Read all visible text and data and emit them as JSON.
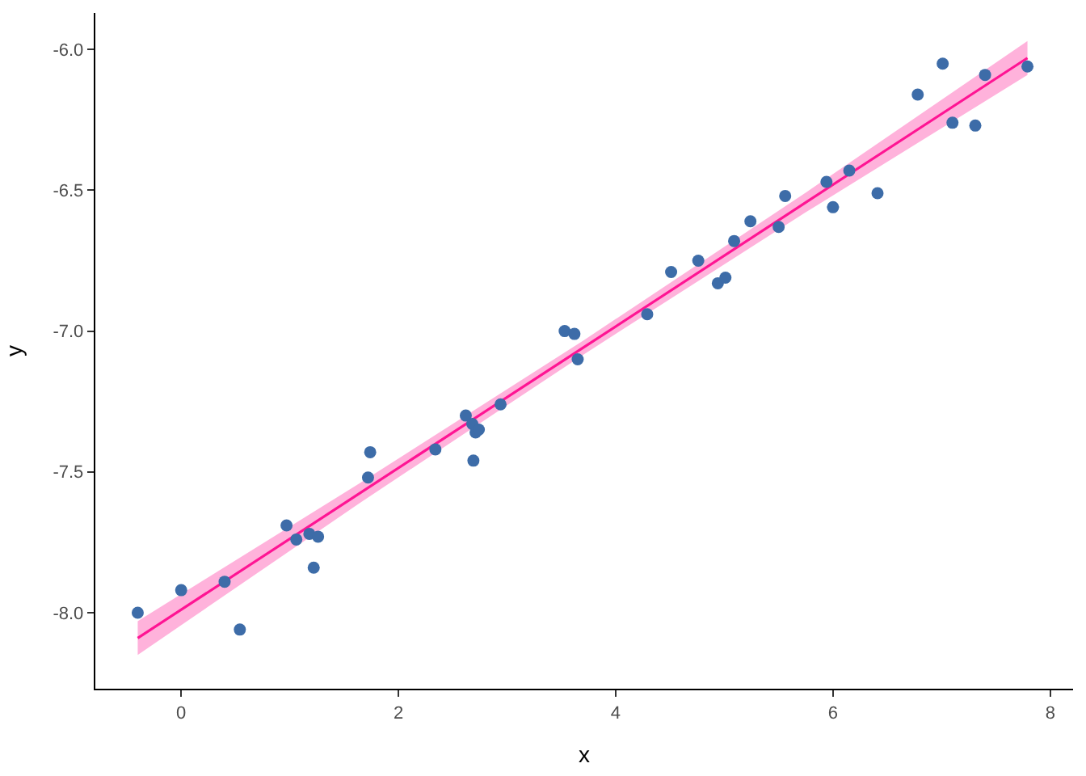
{
  "chart_data": {
    "type": "scatter",
    "xlabel": "x",
    "ylabel": "y",
    "xlim": [
      -0.79,
      8.21
    ],
    "ylim": [
      -8.27,
      -5.87
    ],
    "xticks": [
      0,
      2,
      4,
      6,
      8
    ],
    "yticks": [
      {
        "value": -8,
        "label": "-8.0"
      },
      {
        "value": -7.5,
        "label": "-7.5"
      },
      {
        "value": -7,
        "label": "-7.0"
      },
      {
        "value": -6.5,
        "label": "-6.5"
      },
      {
        "value": -6,
        "label": "-6.0"
      }
    ],
    "grid": false,
    "series": [
      {
        "type": "line",
        "color": "#ff1493",
        "x": [
          -0.4,
          1.65,
          3.7,
          5.75,
          7.79
        ],
        "values": [
          -8.09,
          -7.574,
          -7.059,
          -6.543,
          -6.03
        ],
        "lower": [
          -8.15,
          -7.609,
          -7.084,
          -6.578,
          -6.09
        ],
        "upper": [
          -8.03,
          -7.539,
          -7.034,
          -6.508,
          -5.97
        ],
        "marker": "none",
        "line_style": "solid"
      },
      {
        "color": "#3d6ca8",
        "marker": "circle",
        "x": [
          -0.4,
          0.0,
          0.4,
          0.54,
          0.97,
          1.06,
          1.18,
          1.22,
          1.26,
          1.74,
          1.72,
          2.34,
          2.62,
          2.68,
          2.71,
          2.69,
          2.74,
          2.94,
          3.53,
          3.62,
          3.65,
          4.29,
          4.51,
          4.76,
          4.94,
          5.01,
          5.09,
          5.24,
          5.5,
          5.56,
          5.94,
          6.0,
          6.15,
          6.41,
          6.78,
          7.01,
          7.1,
          7.31,
          7.4,
          7.79
        ],
        "values": [
          -8.0,
          -7.92,
          -7.89,
          -8.06,
          -7.69,
          -7.74,
          -7.72,
          -7.84,
          -7.73,
          -7.43,
          -7.52,
          -7.42,
          -7.3,
          -7.33,
          -7.36,
          -7.46,
          -7.35,
          -7.26,
          -7.0,
          -7.01,
          -7.1,
          -6.94,
          -6.79,
          -6.75,
          -6.83,
          -6.81,
          -6.68,
          -6.61,
          -6.63,
          -6.52,
          -6.47,
          -6.56,
          -6.43,
          -6.51,
          -6.16,
          -6.05,
          -6.26,
          -6.27,
          -6.09,
          -6.06
        ]
      }
    ]
  }
}
